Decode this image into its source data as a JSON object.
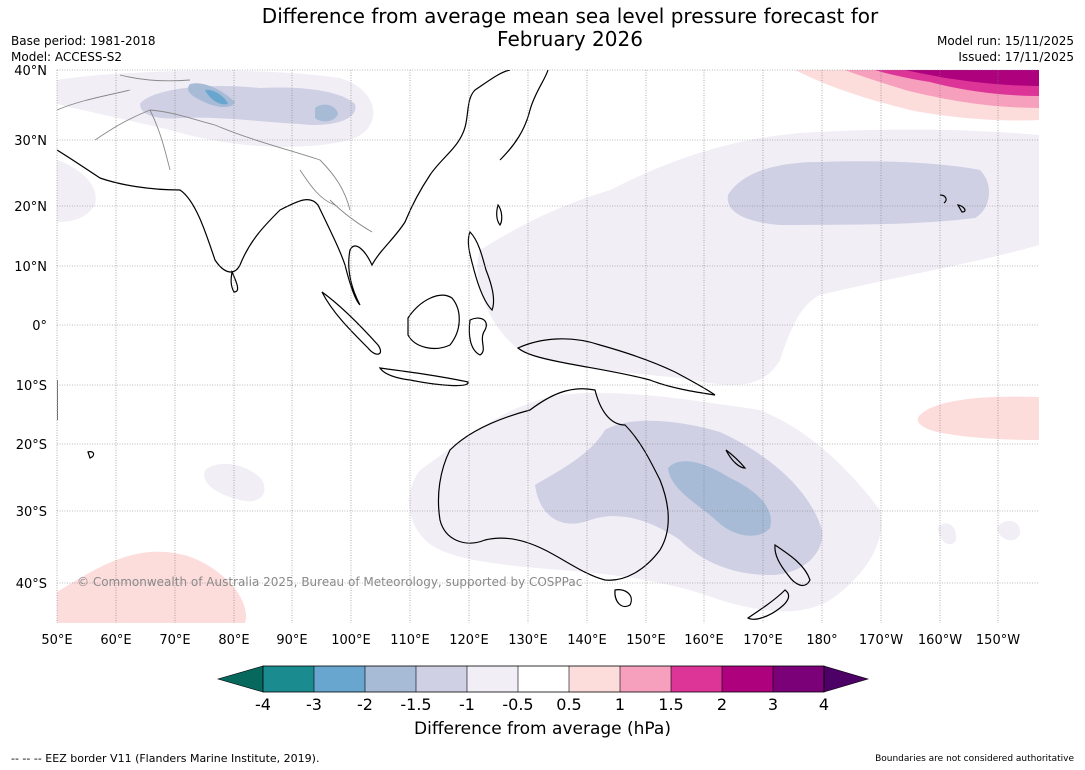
{
  "header": {
    "title_line1": "Difference from average mean sea level pressure forecast for",
    "title_line2": "February 2026",
    "base_period": "Base period: 1981-2018",
    "model": "Model: ACCESS-S2",
    "model_run": "Model run: 15/11/2025",
    "issued": "Issued: 17/11/2025"
  },
  "map": {
    "copyright": "© Commonwealth of Australia 2025, Bureau of Meteorology, supported by COSPPac",
    "lat_labels": [
      "40°N",
      "30°N",
      "20°N",
      "10°N",
      "0°",
      "10°S",
      "20°S",
      "30°S",
      "40°S"
    ],
    "lon_labels": [
      "50°E",
      "60°E",
      "70°E",
      "80°E",
      "90°E",
      "100°E",
      "110°E",
      "120°E",
      "130°E",
      "140°E",
      "150°E",
      "160°E",
      "170°E",
      "180°",
      "170°W",
      "160°W",
      "150°W"
    ]
  },
  "colorbar": {
    "ticks": [
      "-4",
      "-3",
      "-2",
      "-1.5",
      "-1",
      "-0.5",
      "0.5",
      "1",
      "1.5",
      "2",
      "3",
      "4"
    ],
    "colors": [
      "#1a8c8f",
      "#68a6cf",
      "#a7bbd6",
      "#cfd0e4",
      "#f1eef6",
      "#ffffff",
      "#fddcdc",
      "#f7a0bd",
      "#dd3497",
      "#ae017e",
      "#7a0177"
    ],
    "low_color": "#07695e",
    "high_color": "#4d0065",
    "label": "Difference from average (hPa)"
  },
  "footer": {
    "eez": "--  --  -- EEZ border V11 (Flanders Marine Institute, 2019).",
    "boundaries": "Boundaries are not considered authoritative"
  }
}
